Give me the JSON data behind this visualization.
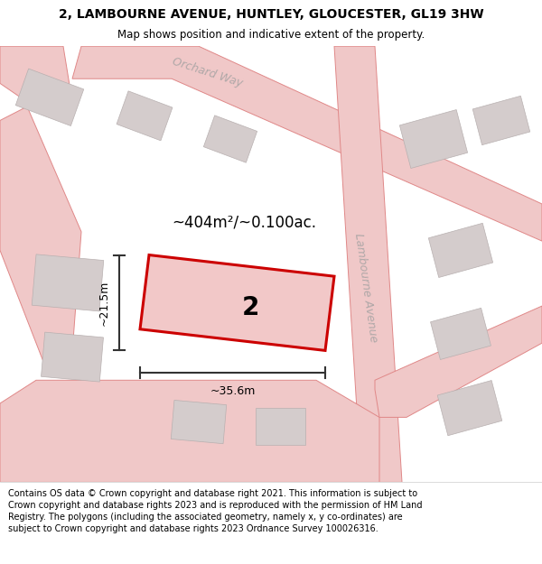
{
  "title": "2, LAMBOURNE AVENUE, HUNTLEY, GLOUCESTER, GL19 3HW",
  "subtitle": "Map shows position and indicative extent of the property.",
  "footer": "Contains OS data © Crown copyright and database right 2021. This information is subject to Crown copyright and database rights 2023 and is reproduced with the permission of HM Land Registry. The polygons (including the associated geometry, namely x, y co-ordinates) are subject to Crown copyright and database rights 2023 Ordnance Survey 100026316.",
  "area_text": "~404m²/~0.100ac.",
  "width_text": "~35.6m",
  "height_text": "~21.5m",
  "plot_number": "2",
  "road_label_1": "Orchard Way",
  "road_label_2": "Lambourne Avenue",
  "bg_color": "#f7f3f1",
  "plot_edge_color": "#cc0000",
  "plot_face_color": "#f2c8c8",
  "building_face_color": "#d4cccc",
  "building_edge_color": "#b8b0b0",
  "road_face_color": "#f0c8c8",
  "road_edge_color": "#e08888",
  "road_label_color": "#b0a8a8",
  "measure_color": "#333333",
  "title_fontsize": 10,
  "subtitle_fontsize": 8.5,
  "footer_fontsize": 7,
  "area_fontsize": 12,
  "dim_fontsize": 9,
  "plot_label_fontsize": 20
}
